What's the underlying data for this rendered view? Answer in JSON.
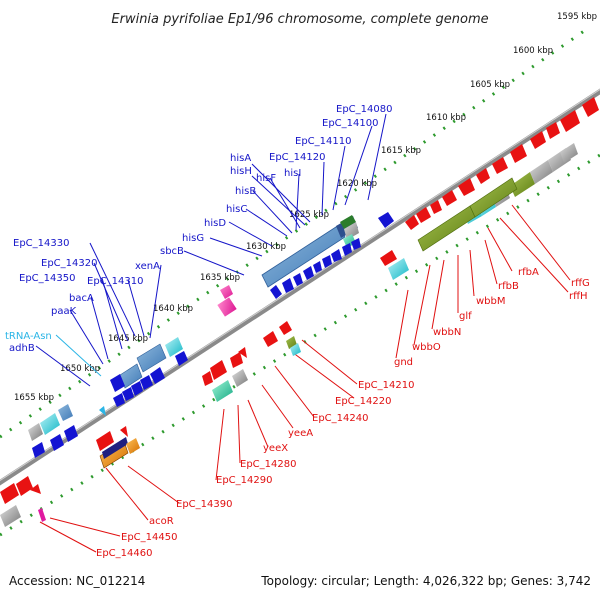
{
  "header": {
    "title": "Erwinia pyrifoliae Ep1/96 chromosome, complete genome"
  },
  "footer": {
    "accession": "Accession: NC_012214",
    "summary": "Topology: circular; Length: 4,026,322 bp; Genes: 3,742"
  },
  "scale_labels": [
    "1595 kbp",
    "1600 kbp",
    "1605 kbp",
    "1610 kbp",
    "1615 kbp",
    "1620 kbp",
    "1625 kbp",
    "1630 kbp",
    "1635 kbp",
    "1640 kbp",
    "1645 kbp",
    "1650 kbp",
    "1655 kbp"
  ],
  "forward_labels": [
    {
      "text": "EpC_14080",
      "color": "#1515c8"
    },
    {
      "text": "EpC_14100",
      "color": "#1515c8"
    },
    {
      "text": "EpC_14110",
      "color": "#1515c8"
    },
    {
      "text": "EpC_14120",
      "color": "#1515c8"
    },
    {
      "text": "hisA",
      "color": "#1515c8"
    },
    {
      "text": "hisH",
      "color": "#1515c8"
    },
    {
      "text": "hisF",
      "color": "#1515c8"
    },
    {
      "text": "hisI",
      "color": "#1515c8"
    },
    {
      "text": "hisB",
      "color": "#1515c8"
    },
    {
      "text": "hisC",
      "color": "#1515c8"
    },
    {
      "text": "hisD",
      "color": "#1515c8"
    },
    {
      "text": "hisG",
      "color": "#1515c8"
    },
    {
      "text": "sbcB",
      "color": "#1515c8"
    },
    {
      "text": "xenA",
      "color": "#1515c8"
    },
    {
      "text": "EpC_14330",
      "color": "#1515c8"
    },
    {
      "text": "EpC_14320",
      "color": "#1515c8"
    },
    {
      "text": "EpC_14350",
      "color": "#1515c8"
    },
    {
      "text": "EpC_14310",
      "color": "#1515c8"
    },
    {
      "text": "bacA",
      "color": "#1515c8"
    },
    {
      "text": "paaK",
      "color": "#1515c8"
    },
    {
      "text": "tRNA-Asn",
      "color": "#2bb5e6"
    },
    {
      "text": "adhB",
      "color": "#1515c8"
    }
  ],
  "reverse_labels": [
    {
      "text": "rffG",
      "color": "#e01010"
    },
    {
      "text": "rffH",
      "color": "#e01010"
    },
    {
      "text": "rfbA",
      "color": "#e01010"
    },
    {
      "text": "rfbB",
      "color": "#e01010"
    },
    {
      "text": "wbbM",
      "color": "#e01010"
    },
    {
      "text": "glf",
      "color": "#e01010"
    },
    {
      "text": "wbbN",
      "color": "#e01010"
    },
    {
      "text": "wbbO",
      "color": "#e01010"
    },
    {
      "text": "gnd",
      "color": "#e01010"
    },
    {
      "text": "EpC_14210",
      "color": "#e01010"
    },
    {
      "text": "EpC_14220",
      "color": "#e01010"
    },
    {
      "text": "EpC_14240",
      "color": "#e01010"
    },
    {
      "text": "yeeA",
      "color": "#e01010"
    },
    {
      "text": "yeeX",
      "color": "#e01010"
    },
    {
      "text": "EpC_14280",
      "color": "#e01010"
    },
    {
      "text": "EpC_14290",
      "color": "#e01010"
    },
    {
      "text": "EpC_14390",
      "color": "#e01010"
    },
    {
      "text": "acoR",
      "color": "#e01010"
    },
    {
      "text": "EpC_14450",
      "color": "#e01010"
    },
    {
      "text": "EpC_14460",
      "color": "#e01010"
    }
  ],
  "colors": {
    "backbone": "#8a8a8a",
    "ruler_dots": "#2e9a2e",
    "forward_cds": "#1414d2",
    "reverse_cds": "#e81212",
    "trna": "#2bb5e6",
    "leader_forward": "#1515c8",
    "leader_reverse": "#e01010"
  }
}
